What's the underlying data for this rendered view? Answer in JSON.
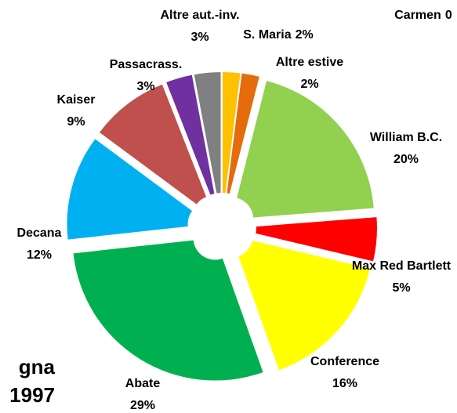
{
  "chart_data": {
    "type": "pie",
    "title_lines": [
      "gna",
      "1997"
    ],
    "categories": [
      "S. Maria",
      "Altre estive",
      "William B.C.",
      "Max Red Bartlett",
      "Conference",
      "Abate",
      "Decana",
      "Kaiser",
      "Passacrass.",
      "Altre aut.-inv.",
      "Carmen"
    ],
    "values": [
      2,
      2,
      20,
      5,
      16,
      29,
      12,
      9,
      3,
      3,
      0
    ],
    "value_labels": [
      "2%",
      "2%",
      "20%",
      "5%",
      "16%",
      "29%",
      "12%",
      "9%",
      "3%",
      "3%",
      "0"
    ],
    "colors": [
      "#ffc000",
      "#e46c0a",
      "#92d050",
      "#ff0000",
      "#ffff00",
      "#00b050",
      "#00b0f0",
      "#c0504d",
      "#7030a0",
      "#808080",
      "#4f81bd"
    ]
  }
}
